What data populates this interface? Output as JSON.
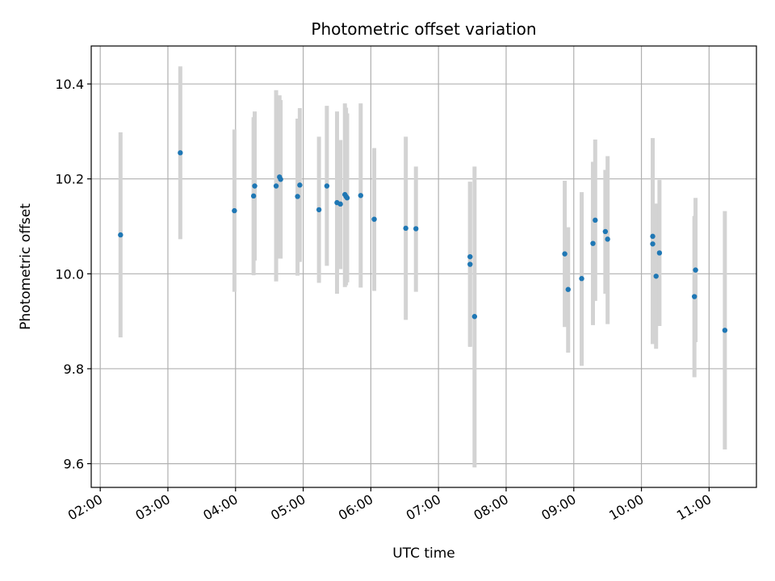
{
  "chart_data": {
    "type": "scatter",
    "title": "Photometric offset variation",
    "xlabel": "UTC time",
    "ylabel": "Photometric offset",
    "xlim": [
      "01:52",
      "11:42"
    ],
    "ylim": [
      9.55,
      10.48
    ],
    "grid": true,
    "x_ticks": [
      "02:00",
      "03:00",
      "04:00",
      "05:00",
      "06:00",
      "07:00",
      "08:00",
      "09:00",
      "10:00",
      "11:00"
    ],
    "y_ticks": [
      9.6,
      9.8,
      10.0,
      10.2,
      10.4
    ],
    "y_tick_labels": [
      "9.6",
      "9.8",
      "10.0",
      "10.2",
      "10.4"
    ],
    "point_color": "#1f77b4",
    "errorbar_color": "#d3d3d3",
    "points": [
      {
        "x": "02:18",
        "y": 10.082,
        "lo": 9.866,
        "hi": 10.298
      },
      {
        "x": "03:11",
        "y": 10.255,
        "lo": 10.073,
        "hi": 10.437
      },
      {
        "x": "03:59",
        "y": 10.133,
        "lo": 9.962,
        "hi": 10.304
      },
      {
        "x": "04:16",
        "y": 10.164,
        "lo": 9.997,
        "hi": 10.33
      },
      {
        "x": "04:17",
        "y": 10.185,
        "lo": 10.028,
        "hi": 10.342
      },
      {
        "x": "04:36",
        "y": 10.185,
        "lo": 9.984,
        "hi": 10.387
      },
      {
        "x": "04:39",
        "y": 10.204,
        "lo": 10.032,
        "hi": 10.376
      },
      {
        "x": "04:40",
        "y": 10.199,
        "lo": 10.032,
        "hi": 10.366
      },
      {
        "x": "04:55",
        "y": 10.163,
        "lo": 9.996,
        "hi": 10.327
      },
      {
        "x": "04:57",
        "y": 10.187,
        "lo": 10.025,
        "hi": 10.349
      },
      {
        "x": "05:14",
        "y": 10.135,
        "lo": 9.981,
        "hi": 10.289
      },
      {
        "x": "05:21",
        "y": 10.185,
        "lo": 10.017,
        "hi": 10.354
      },
      {
        "x": "05:30",
        "y": 10.15,
        "lo": 9.958,
        "hi": 10.342
      },
      {
        "x": "05:33",
        "y": 10.147,
        "lo": 10.01,
        "hi": 10.282
      },
      {
        "x": "05:37",
        "y": 10.167,
        "lo": 9.972,
        "hi": 10.359
      },
      {
        "x": "05:38",
        "y": 10.163,
        "lo": 9.976,
        "hi": 10.35
      },
      {
        "x": "05:39",
        "y": 10.16,
        "lo": 9.982,
        "hi": 10.338
      },
      {
        "x": "05:51",
        "y": 10.165,
        "lo": 9.971,
        "hi": 10.359
      },
      {
        "x": "06:03",
        "y": 10.115,
        "lo": 9.964,
        "hi": 10.265
      },
      {
        "x": "06:31",
        "y": 10.096,
        "lo": 9.903,
        "hi": 10.289
      },
      {
        "x": "06:40",
        "y": 10.095,
        "lo": 9.962,
        "hi": 10.226
      },
      {
        "x": "07:28",
        "y": 10.036,
        "lo": 9.848,
        "hi": 10.194
      },
      {
        "x": "07:28",
        "y": 10.02,
        "lo": 9.846,
        "hi": 10.194
      },
      {
        "x": "07:32",
        "y": 9.91,
        "lo": 9.592,
        "hi": 10.226
      },
      {
        "x": "08:52",
        "y": 10.042,
        "lo": 9.888,
        "hi": 10.196
      },
      {
        "x": "08:55",
        "y": 9.967,
        "lo": 9.834,
        "hi": 10.098
      },
      {
        "x": "09:07",
        "y": 9.99,
        "lo": 9.806,
        "hi": 10.172
      },
      {
        "x": "09:17",
        "y": 10.064,
        "lo": 9.892,
        "hi": 10.236
      },
      {
        "x": "09:19",
        "y": 10.113,
        "lo": 9.943,
        "hi": 10.283
      },
      {
        "x": "09:28",
        "y": 10.089,
        "lo": 9.958,
        "hi": 10.219
      },
      {
        "x": "09:30",
        "y": 10.073,
        "lo": 9.894,
        "hi": 10.248
      },
      {
        "x": "10:10",
        "y": 10.079,
        "lo": 9.872,
        "hi": 10.286
      },
      {
        "x": "10:10",
        "y": 10.063,
        "lo": 9.852,
        "hi": 10.27
      },
      {
        "x": "10:13",
        "y": 9.995,
        "lo": 9.842,
        "hi": 10.148
      },
      {
        "x": "10:16",
        "y": 10.044,
        "lo": 9.89,
        "hi": 10.198
      },
      {
        "x": "10:47",
        "y": 9.952,
        "lo": 9.782,
        "hi": 10.122
      },
      {
        "x": "10:48",
        "y": 10.008,
        "lo": 9.856,
        "hi": 10.16
      },
      {
        "x": "11:14",
        "y": 9.881,
        "lo": 9.63,
        "hi": 10.132
      }
    ]
  }
}
